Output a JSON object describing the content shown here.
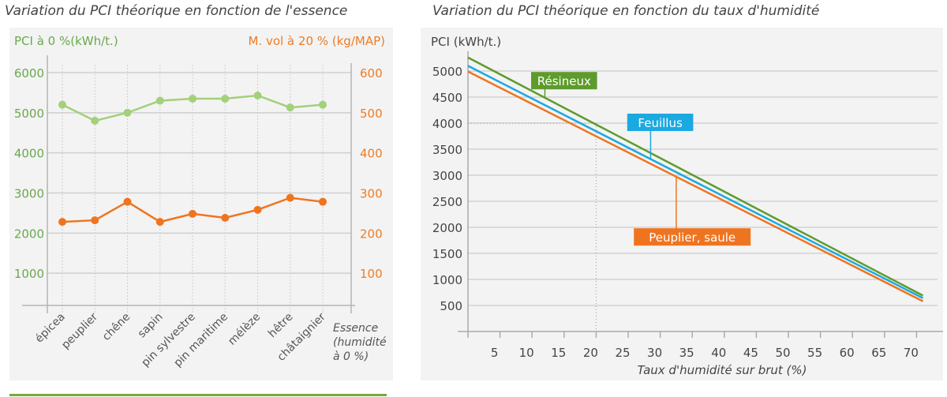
{
  "chart_data": [
    {
      "type": "line",
      "title": "Variation du PCI théorique en fonction de l'essence",
      "xlabel": "Essence (humidité à 0 %)",
      "xlabel_lines": [
        "Essence",
        "(humidité",
        "à 0 %)"
      ],
      "categories": [
        "épicea",
        "peuplier",
        "chêne",
        "sapin",
        "pin sylvestre",
        "pin maritime",
        "mélèze",
        "hêtre",
        "châtaignier"
      ],
      "y_left": {
        "label": "PCI à 0 %(kWh/t.)",
        "ticks": [
          1000,
          2000,
          3000,
          4000,
          5000,
          6000
        ],
        "range": [
          0,
          6000
        ],
        "color": "#6aa84f"
      },
      "y_right": {
        "label": "M. vol à 20 % (kg/MAP)",
        "ticks": [
          100,
          200,
          300,
          400,
          500,
          600
        ],
        "range": [
          0,
          600
        ],
        "color": "#ef7b23"
      },
      "series": [
        {
          "axis": "left",
          "color": "#a3d07a",
          "values": [
            5200,
            4800,
            5000,
            5300,
            5350,
            5350,
            5430,
            5130,
            5200
          ]
        },
        {
          "axis": "right",
          "color": "#ef7420",
          "values": [
            228,
            232,
            278,
            228,
            248,
            238,
            258,
            288,
            278
          ]
        }
      ],
      "grid": true
    },
    {
      "type": "line",
      "title": "Variation du PCI théorique en fonction du taux d'humidité",
      "xlabel": "Taux d'humidité sur brut (%)",
      "ylabel": "PCI (kWh/t.)",
      "xlim": [
        0,
        72
      ],
      "ylim": [
        0,
        5400
      ],
      "xticks": [
        5,
        10,
        15,
        20,
        25,
        30,
        35,
        40,
        45,
        50,
        55,
        60,
        65,
        70
      ],
      "yticks": [
        500,
        1000,
        1500,
        2000,
        2500,
        3000,
        3500,
        4000,
        4500,
        5000
      ],
      "series": [
        {
          "name": "Résineux",
          "color": "#5e9b2c",
          "x": [
            0,
            71
          ],
          "y": [
            5260,
            690
          ],
          "label_at": 12,
          "label_box": [
            15,
            4800
          ]
        },
        {
          "name": "Feuillus",
          "color": "#1ba9e1",
          "x": [
            0,
            71
          ],
          "y": [
            5100,
            640
          ],
          "label_at": 28.5,
          "label_box": [
            30,
            4000
          ]
        },
        {
          "name": "Peuplier, saule",
          "color": "#ef7420",
          "x": [
            0,
            71
          ],
          "y": [
            4990,
            580
          ],
          "label_at": 32.5,
          "label_box": [
            35,
            1800
          ]
        }
      ],
      "reference": {
        "x": 20,
        "y": 4000
      },
      "grid": true
    }
  ]
}
